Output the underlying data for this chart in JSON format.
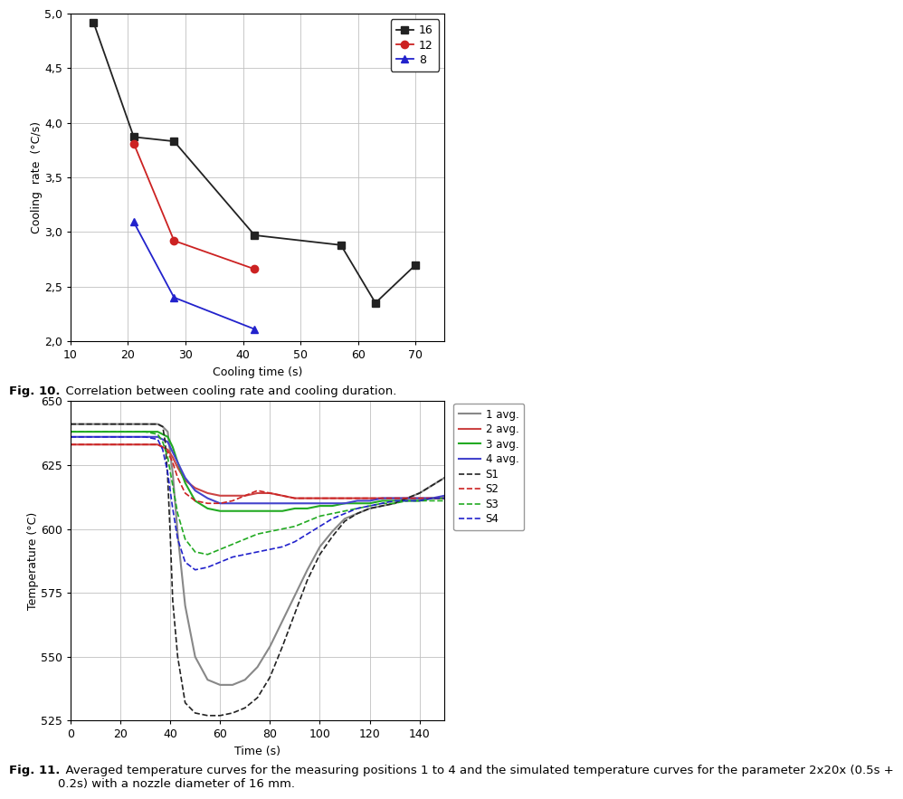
{
  "fig10": {
    "xlabel": "Cooling time (s)",
    "ylabel": "Cooling  rate  (°C/s)",
    "xlim": [
      10,
      75
    ],
    "ylim": [
      2.0,
      5.0
    ],
    "xticks": [
      10,
      20,
      30,
      40,
      50,
      60,
      70
    ],
    "yticks": [
      2.0,
      2.5,
      3.0,
      3.5,
      4.0,
      4.5,
      5.0
    ],
    "ytick_labels": [
      "2,0",
      "2,5",
      "3,0",
      "3,5",
      "4,0",
      "4,5",
      "5,0"
    ],
    "series": [
      {
        "label": "16",
        "color": "#222222",
        "marker": "s",
        "markersize": 6,
        "x": [
          14,
          21,
          28,
          42,
          57,
          63,
          70
        ],
        "y": [
          4.92,
          3.87,
          3.83,
          2.97,
          2.88,
          2.35,
          2.7
        ]
      },
      {
        "label": "12",
        "color": "#cc2222",
        "marker": "o",
        "markersize": 6,
        "x": [
          21,
          28,
          42
        ],
        "y": [
          3.81,
          2.92,
          2.66
        ]
      },
      {
        "label": "8",
        "color": "#2222cc",
        "marker": "^",
        "markersize": 6,
        "x": [
          21,
          28,
          42
        ],
        "y": [
          3.09,
          2.4,
          2.11
        ]
      }
    ],
    "fig10_bold": "Fig. 10.",
    "fig10_rest": "  Correlation between cooling rate and cooling duration."
  },
  "fig11": {
    "xlabel": "Time (s)",
    "ylabel": "Temperature (°C)",
    "xlim": [
      0,
      150
    ],
    "ylim": [
      525,
      650
    ],
    "xticks": [
      0,
      20,
      40,
      60,
      80,
      100,
      120,
      140
    ],
    "yticks": [
      525,
      550,
      575,
      600,
      625,
      650
    ],
    "avg_series": [
      {
        "label": "1 avg.",
        "color": "#888888",
        "x": [
          0,
          5,
          10,
          15,
          20,
          25,
          30,
          35,
          37,
          39,
          41,
          43,
          46,
          50,
          55,
          60,
          65,
          70,
          75,
          80,
          85,
          90,
          95,
          100,
          105,
          110,
          115,
          120,
          125,
          130,
          135,
          140,
          145,
          150
        ],
        "y": [
          641,
          641,
          641,
          641,
          641,
          641,
          641,
          641,
          640,
          638,
          622,
          598,
          570,
          550,
          541,
          539,
          539,
          541,
          546,
          554,
          564,
          574,
          584,
          593,
          599,
          604,
          606,
          608,
          609,
          610,
          612,
          614,
          617,
          620
        ]
      },
      {
        "label": "2 avg.",
        "color": "#cc4444",
        "x": [
          0,
          5,
          10,
          15,
          20,
          25,
          30,
          35,
          37,
          39,
          41,
          43,
          46,
          50,
          55,
          60,
          65,
          70,
          75,
          80,
          85,
          90,
          95,
          100,
          105,
          110,
          115,
          120,
          125,
          130,
          135,
          140,
          145,
          150
        ],
        "y": [
          633,
          633,
          633,
          633,
          633,
          633,
          633,
          633,
          632,
          631,
          628,
          624,
          619,
          616,
          614,
          613,
          613,
          613,
          614,
          614,
          613,
          612,
          612,
          612,
          612,
          612,
          612,
          612,
          612,
          612,
          612,
          612,
          612,
          612
        ]
      },
      {
        "label": "3 avg.",
        "color": "#22aa22",
        "x": [
          0,
          5,
          10,
          15,
          20,
          25,
          30,
          35,
          37,
          39,
          41,
          43,
          46,
          50,
          55,
          60,
          65,
          70,
          75,
          80,
          85,
          90,
          95,
          100,
          105,
          110,
          115,
          120,
          125,
          130,
          135,
          140,
          145,
          150
        ],
        "y": [
          638,
          638,
          638,
          638,
          638,
          638,
          638,
          638,
          637,
          636,
          632,
          626,
          618,
          611,
          608,
          607,
          607,
          607,
          607,
          607,
          607,
          608,
          608,
          609,
          609,
          610,
          610,
          610,
          611,
          611,
          611,
          611,
          612,
          612
        ]
      },
      {
        "label": "4 avg.",
        "color": "#4444cc",
        "x": [
          0,
          5,
          10,
          15,
          20,
          25,
          30,
          35,
          37,
          39,
          41,
          43,
          46,
          50,
          55,
          60,
          65,
          70,
          75,
          80,
          85,
          90,
          95,
          100,
          105,
          110,
          115,
          120,
          125,
          130,
          135,
          140,
          145,
          150
        ],
        "y": [
          636,
          636,
          636,
          636,
          636,
          636,
          636,
          636,
          635,
          634,
          630,
          626,
          620,
          615,
          612,
          610,
          610,
          610,
          610,
          610,
          610,
          610,
          610,
          610,
          610,
          610,
          611,
          611,
          612,
          612,
          612,
          612,
          612,
          613
        ]
      }
    ],
    "sim_series": [
      {
        "label": "S1",
        "color": "#222222",
        "x": [
          0,
          5,
          10,
          15,
          20,
          25,
          30,
          35,
          37,
          38,
          39,
          40,
          41,
          43,
          46,
          50,
          55,
          60,
          65,
          70,
          75,
          80,
          85,
          90,
          95,
          100,
          105,
          110,
          115,
          120,
          125,
          130,
          135,
          140,
          145,
          150
        ],
        "y": [
          641,
          641,
          641,
          641,
          641,
          641,
          641,
          641,
          640,
          634,
          620,
          598,
          572,
          550,
          532,
          528,
          527,
          527,
          528,
          530,
          534,
          542,
          554,
          567,
          580,
          590,
          597,
          603,
          606,
          608,
          609,
          610,
          612,
          614,
          617,
          620
        ]
      },
      {
        "label": "S2",
        "color": "#cc2222",
        "x": [
          0,
          5,
          10,
          15,
          20,
          25,
          30,
          35,
          37,
          39,
          41,
          43,
          46,
          50,
          55,
          60,
          65,
          70,
          75,
          80,
          85,
          90,
          95,
          100,
          105,
          110,
          115,
          120,
          125,
          130,
          135,
          140,
          145,
          150
        ],
        "y": [
          633,
          633,
          633,
          633,
          633,
          633,
          633,
          633,
          632,
          630,
          626,
          620,
          614,
          611,
          610,
          610,
          611,
          613,
          615,
          614,
          613,
          612,
          612,
          612,
          612,
          612,
          612,
          612,
          612,
          612,
          612,
          612,
          612,
          612
        ]
      },
      {
        "label": "S3",
        "color": "#22aa22",
        "x": [
          0,
          5,
          10,
          15,
          20,
          25,
          30,
          35,
          37,
          39,
          41,
          43,
          46,
          50,
          55,
          60,
          65,
          70,
          75,
          80,
          85,
          90,
          95,
          100,
          105,
          110,
          115,
          120,
          125,
          130,
          135,
          140,
          145,
          150
        ],
        "y": [
          638,
          638,
          638,
          638,
          638,
          638,
          638,
          637,
          634,
          628,
          617,
          606,
          596,
          591,
          590,
          592,
          594,
          596,
          598,
          599,
          600,
          601,
          603,
          605,
          606,
          607,
          608,
          609,
          610,
          610,
          611,
          611,
          611,
          611
        ]
      },
      {
        "label": "S4",
        "color": "#2222cc",
        "x": [
          0,
          5,
          10,
          15,
          20,
          25,
          30,
          35,
          37,
          39,
          41,
          43,
          46,
          50,
          55,
          60,
          65,
          70,
          75,
          80,
          85,
          90,
          95,
          100,
          105,
          110,
          115,
          120,
          125,
          130,
          135,
          140,
          145,
          150
        ],
        "y": [
          636,
          636,
          636,
          636,
          636,
          636,
          636,
          635,
          631,
          622,
          608,
          596,
          587,
          584,
          585,
          587,
          589,
          590,
          591,
          592,
          593,
          595,
          598,
          601,
          604,
          606,
          608,
          609,
          610,
          611,
          611,
          611,
          612,
          612
        ]
      }
    ],
    "fig11_bold": "Fig. 11.",
    "fig11_rest": "  Averaged temperature curves for the measuring positions 1 to 4 and the simulated temperature curves for the parameter 2x20x (0.5s +\n0.2s) with a nozzle diameter of 16 mm."
  }
}
